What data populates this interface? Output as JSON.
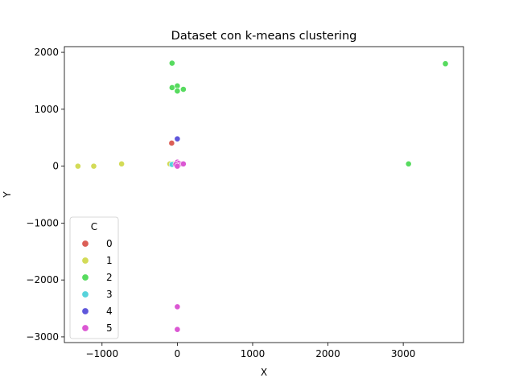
{
  "chart_data": {
    "type": "scatter",
    "title": "Dataset con k-means clustering",
    "xlabel": "X",
    "ylabel": "Y",
    "xlim": [
      -1500,
      3800
    ],
    "ylim": [
      -3100,
      2100
    ],
    "xticks": [
      -1000,
      0,
      1000,
      2000,
      3000
    ],
    "yticks": [
      -3000,
      -2000,
      -1000,
      0,
      1000,
      2000
    ],
    "xtick_labels": [
      "−1000",
      "0",
      "1000",
      "2000",
      "3000"
    ],
    "ytick_labels": [
      "−3000",
      "−2000",
      "−1000",
      "0",
      "1000",
      "2000"
    ],
    "grid": false,
    "legend": {
      "title": "C",
      "placement": "lower-left"
    },
    "series": [
      {
        "name": "0",
        "color": "#db5f57",
        "points": [
          [
            -75,
            405
          ]
        ]
      },
      {
        "name": "1",
        "color": "#d3db57",
        "points": [
          [
            -1320,
            0
          ],
          [
            -1110,
            0
          ],
          [
            -740,
            40
          ],
          [
            -100,
            40
          ],
          [
            -60,
            40
          ]
        ]
      },
      {
        "name": "2",
        "color": "#57db5f",
        "points": [
          [
            -70,
            1810
          ],
          [
            -70,
            1380
          ],
          [
            0,
            1410
          ],
          [
            0,
            1320
          ],
          [
            80,
            1350
          ],
          [
            3070,
            40
          ],
          [
            3560,
            1800
          ]
        ]
      },
      {
        "name": "3",
        "color": "#57d3db",
        "points": [
          [
            -70,
            30
          ]
        ]
      },
      {
        "name": "4",
        "color": "#5f57db",
        "points": [
          [
            0,
            480
          ]
        ]
      },
      {
        "name": "5",
        "color": "#db57d3",
        "points": [
          [
            0,
            70
          ],
          [
            20,
            50
          ],
          [
            -20,
            30
          ],
          [
            60,
            40
          ],
          [
            80,
            40
          ],
          [
            0,
            0
          ],
          [
            0,
            -2470
          ],
          [
            0,
            -2870
          ]
        ]
      }
    ]
  }
}
